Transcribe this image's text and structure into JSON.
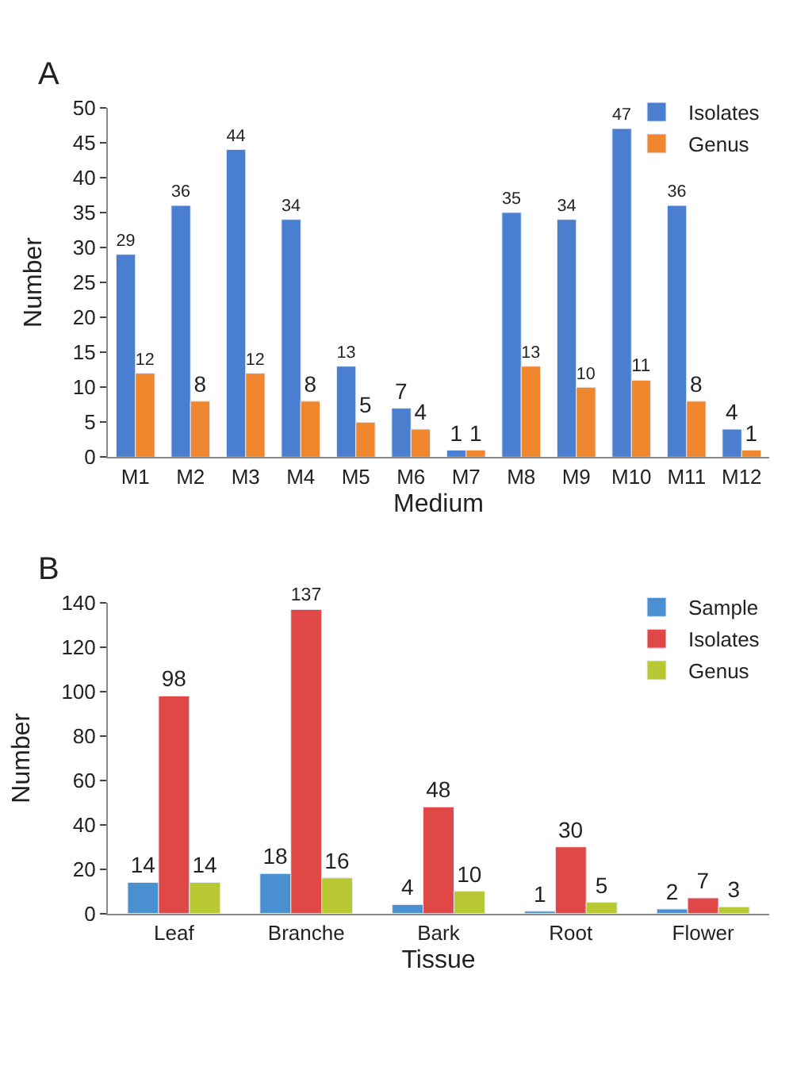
{
  "chart_data": [
    {
      "type": "bar",
      "title": "A",
      "xlabel": "Medium",
      "ylabel": "Number",
      "categories": [
        "M1",
        "M2",
        "M3",
        "M4",
        "M5",
        "M6",
        "M7",
        "M8",
        "M9",
        "M10",
        "M11",
        "M12"
      ],
      "series": [
        {
          "name": "Isolates",
          "color": "#4a7fd0",
          "values": [
            29,
            36,
            44,
            34,
            13,
            7,
            1,
            35,
            34,
            47,
            36,
            4
          ]
        },
        {
          "name": "Genus",
          "color": "#f0862e",
          "values": [
            12,
            8,
            12,
            8,
            5,
            4,
            1,
            13,
            10,
            11,
            8,
            1
          ]
        }
      ],
      "ylim": [
        0,
        50
      ],
      "yticks": [
        0,
        5,
        10,
        15,
        20,
        25,
        30,
        35,
        40,
        45,
        50
      ],
      "data_labels": true,
      "legend": "top right"
    },
    {
      "type": "bar",
      "title": "B",
      "xlabel": "Tissue",
      "ylabel": "Number",
      "categories": [
        "Leaf",
        "Branche",
        "Bark",
        "Root",
        "Flower"
      ],
      "series": [
        {
          "name": "Sample",
          "color": "#4a90d0",
          "values": [
            14,
            18,
            4,
            1,
            2
          ]
        },
        {
          "name": "Isolates",
          "color": "#e04848",
          "values": [
            98,
            137,
            48,
            30,
            7
          ]
        },
        {
          "name": "Genus",
          "color": "#b8c832",
          "values": [
            14,
            16,
            10,
            5,
            3
          ]
        }
      ],
      "ylim": [
        0,
        140
      ],
      "yticks": [
        0,
        20,
        40,
        60,
        80,
        100,
        120,
        140
      ],
      "data_labels": true,
      "legend": "top right"
    }
  ]
}
